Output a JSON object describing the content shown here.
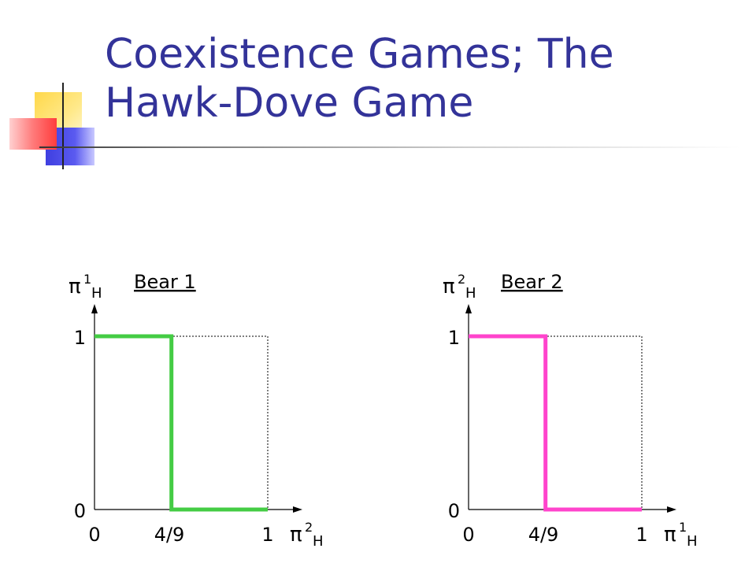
{
  "slide": {
    "title_line1": "Coexistence Games; The",
    "title_line2": "Hawk-Dove Game"
  },
  "colors": {
    "title": "#333399",
    "bear1_line": "#44cc44",
    "bear2_line": "#ff44cc"
  },
  "chart_data": [
    {
      "type": "line",
      "title": "Bear 1",
      "ylabel": {
        "base": "π",
        "sup": "1",
        "sub": "H"
      },
      "xlabel": {
        "base": "π",
        "sup": "2",
        "sub": "H"
      },
      "xticks": [
        "0",
        "4/9",
        "1"
      ],
      "yticks": [
        "0",
        "1"
      ],
      "x": [
        0,
        0.444,
        0.444,
        1
      ],
      "y": [
        1,
        1,
        0,
        0
      ],
      "xlim": [
        0,
        1
      ],
      "ylim": [
        0,
        1
      ],
      "color": "#44cc44"
    },
    {
      "type": "line",
      "title": "Bear 2",
      "ylabel": {
        "base": "π",
        "sup": "2",
        "sub": "H"
      },
      "xlabel": {
        "base": "π",
        "sup": "1",
        "sub": "H"
      },
      "xticks": [
        "0",
        "4/9",
        "1"
      ],
      "yticks": [
        "0",
        "1"
      ],
      "x": [
        0,
        0.444,
        0.444,
        1
      ],
      "y": [
        1,
        1,
        0,
        0
      ],
      "xlim": [
        0,
        1
      ],
      "ylim": [
        0,
        1
      ],
      "color": "#ff44cc"
    }
  ]
}
